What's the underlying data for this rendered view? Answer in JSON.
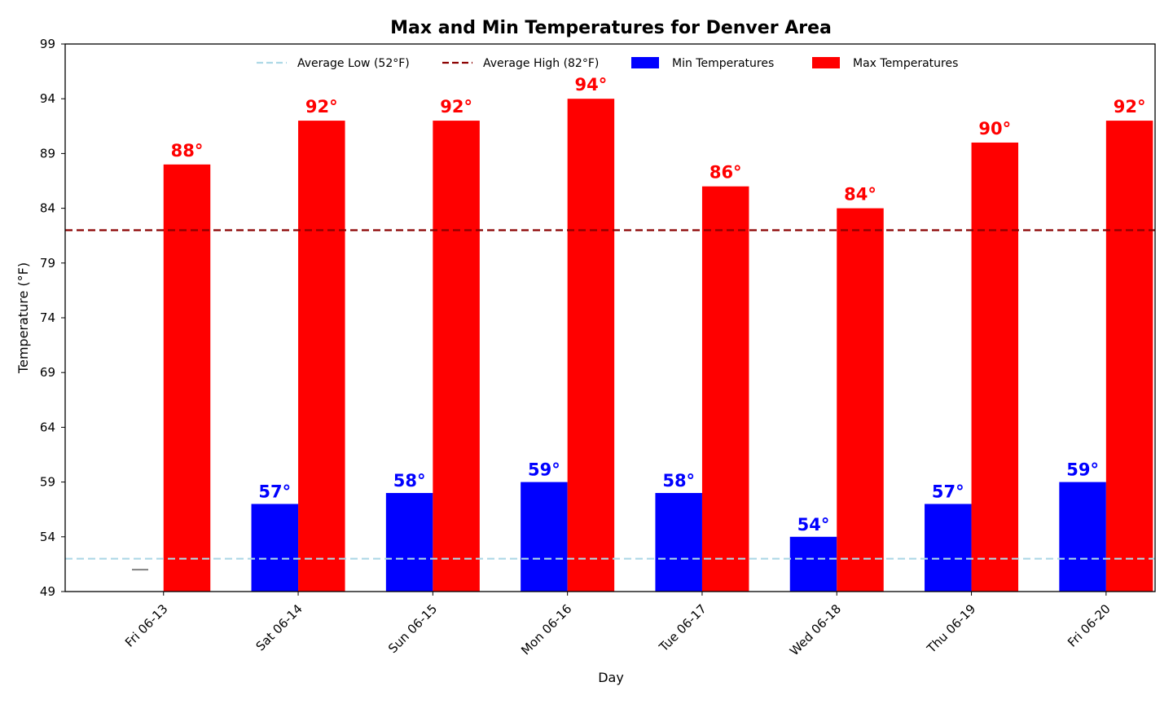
{
  "chart_data": {
    "type": "bar",
    "title": "Max and Min Temperatures for Denver Area",
    "xlabel": "Day",
    "ylabel": "Temperature (°F)",
    "ylim": [
      49,
      99
    ],
    "yticks": [
      49,
      54,
      59,
      64,
      69,
      74,
      79,
      84,
      89,
      94,
      99
    ],
    "categories": [
      "Fri 06-13",
      "Sat 06-14",
      "Sun 06-15",
      "Mon 06-16",
      "Tue 06-17",
      "Wed 06-18",
      "Thu 06-19",
      "Fri 06-20"
    ],
    "series": [
      {
        "name": "Min Temperatures",
        "color": "#0000ff",
        "values": [
          51,
          57,
          58,
          59,
          58,
          54,
          57,
          59
        ],
        "labels": [
          "",
          "57°",
          "58°",
          "59°",
          "58°",
          "54°",
          "57°",
          "59°"
        ]
      },
      {
        "name": "Max Temperatures",
        "color": "#ff0000",
        "values": [
          88,
          92,
          92,
          94,
          86,
          84,
          90,
          92
        ],
        "labels": [
          "88°",
          "92°",
          "92°",
          "94°",
          "86°",
          "84°",
          "90°",
          "92°"
        ]
      }
    ],
    "reference_lines": [
      {
        "name": "Average Low (52°F)",
        "value": 52,
        "color": "#add8e6",
        "style": "dashed"
      },
      {
        "name": "Average High (82°F)",
        "value": 82,
        "color": "#8b0000",
        "style": "dashed"
      }
    ],
    "missing_marker": {
      "category": "Fri 06-13",
      "value": 51,
      "color": "#808080"
    },
    "legend": {
      "placement": "top-center",
      "entries": [
        "Average Low (52°F)",
        "Average High (82°F)",
        "Min Temperatures",
        "Max Temperatures"
      ]
    },
    "grid": false
  }
}
